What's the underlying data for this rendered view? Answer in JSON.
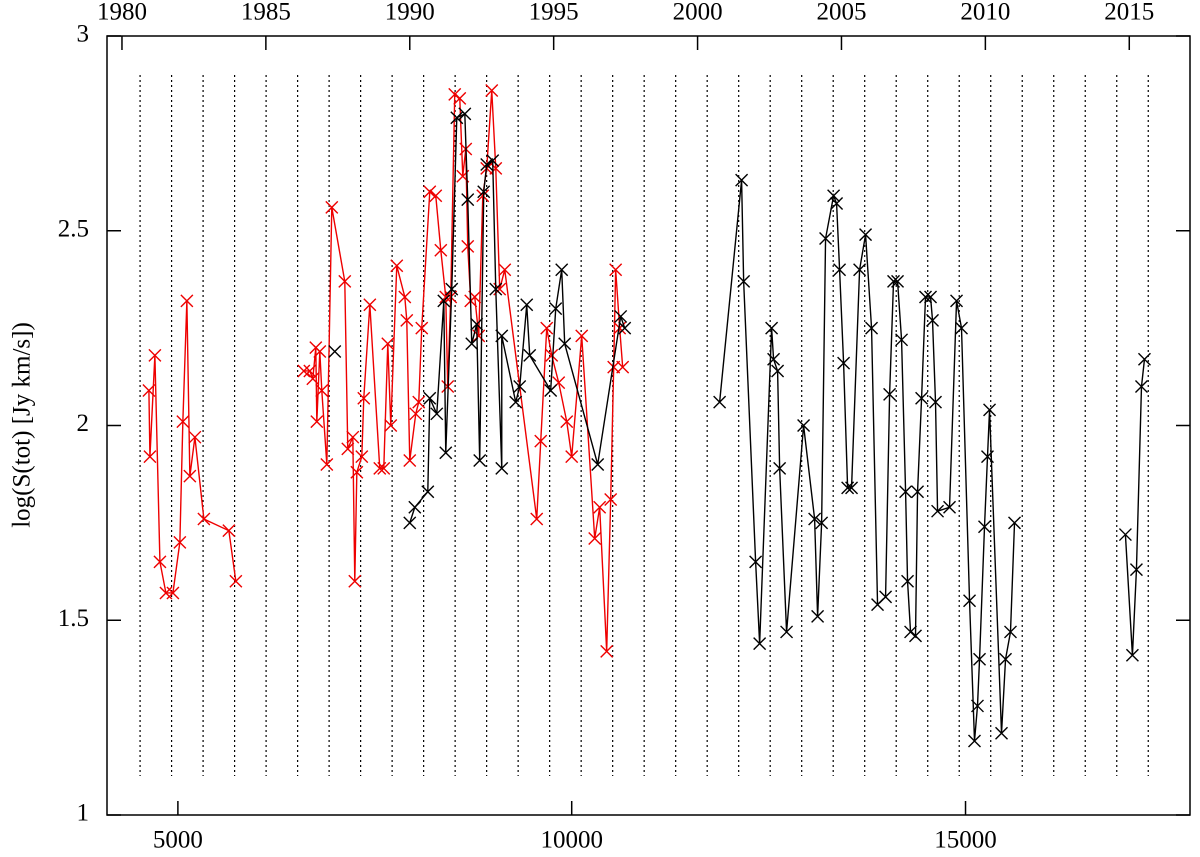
{
  "chart_data": {
    "type": "line",
    "ylabel": "log(S(tot) [Jy km/s])",
    "xlim": [
      4100,
      17850
    ],
    "xticks": [
      5000,
      10000,
      15000
    ],
    "x2lim": [
      1979.48,
      2017.11
    ],
    "x2ticks": [
      1980,
      1985,
      1990,
      1995,
      2000,
      2005,
      2010,
      2015
    ],
    "ylim": [
      1,
      3
    ],
    "yticks": [
      1,
      1.5,
      2,
      2.5,
      3
    ],
    "vlines": [
      4520,
      4920,
      5320,
      5720,
      6120,
      6520,
      6920,
      7320,
      7720,
      8120,
      8520,
      8920,
      9320,
      9720,
      10120,
      10520,
      10920,
      11320,
      11720,
      12120,
      12520,
      12920,
      13320,
      13720,
      14120,
      14520,
      14920,
      15320,
      15720,
      16120,
      16520,
      16920,
      17320
    ],
    "vline_range": [
      1.1,
      2.9
    ],
    "marker": "x",
    "series": [
      {
        "color": "#ee0000",
        "x": [
          4632,
          4645,
          4708,
          4772,
          4848,
          4937,
          5025,
          5063,
          5114,
          5152,
          5216,
          5330,
          5647,
          5736,
          null,
          6599,
          6675,
          6713,
          6751,
          6764,
          6802,
          6827,
          6891,
          6954,
          7119,
          7157,
          7221,
          7246,
          7272,
          7335,
          7360,
          7437,
          7563,
          7614,
          7665,
          7703,
          7779,
          7881,
          7906,
          7944,
          8020,
          8058,
          8096,
          8198,
          8274,
          8338,
          8401,
          8426,
          8464,
          8515,
          8579,
          8617,
          8655,
          8680,
          8718,
          8769,
          8820,
          8871,
          8921,
          8985,
          9036,
          9086,
          9150,
          9556,
          9607,
          9683,
          9746,
          9835,
          9937,
          10000,
          10127,
          10292,
          10355,
          10444,
          10495,
          10533,
          10558,
          10609,
          10647
        ],
        "values": [
          2.09,
          1.92,
          2.18,
          1.65,
          1.57,
          1.57,
          1.7,
          2.01,
          2.32,
          1.87,
          1.97,
          1.76,
          1.73,
          1.6,
          null,
          2.14,
          2.14,
          2.12,
          2.2,
          2.01,
          2.19,
          2.09,
          1.9,
          2.56,
          2.37,
          1.94,
          1.97,
          1.6,
          1.88,
          1.92,
          2.07,
          2.31,
          1.89,
          1.89,
          2.21,
          2.0,
          2.41,
          2.33,
          2.27,
          1.91,
          2.03,
          2.06,
          2.25,
          2.6,
          2.59,
          2.45,
          2.33,
          2.1,
          2.33,
          2.85,
          2.84,
          2.64,
          2.71,
          2.46,
          2.32,
          2.33,
          2.23,
          2.59,
          2.66,
          2.86,
          2.66,
          2.35,
          2.4,
          1.76,
          1.96,
          2.25,
          2.18,
          2.11,
          2.01,
          1.92,
          2.23,
          1.71,
          1.79,
          1.42,
          1.81,
          2.15,
          2.4,
          2.25,
          2.15
        ]
      },
      {
        "color": "#000000",
        "x": [
          6992,
          null,
          7944,
          8008,
          8173,
          8198,
          8287,
          8376,
          8401,
          8477,
          8541,
          8643,
          8680,
          8731,
          8794,
          8832,
          8883,
          8921,
          8997,
          9036,
          9112,
          9112,
          9289,
          9340,
          9429,
          9467,
          9733,
          9797,
          9873,
          9911,
          10330,
          10622,
          10673,
          null,
          11878,
          12157,
          12183,
          12335,
          12386,
          12538,
          12563,
          12614,
          12640,
          12728,
          12944,
          13084,
          13122,
          13173,
          13223,
          13325,
          13363,
          13401,
          13452,
          13503,
          13553,
          13655,
          13731,
          13807,
          13883,
          13985,
          14036,
          14086,
          14137,
          14188,
          14239,
          14264,
          14302,
          14365,
          14391,
          14442,
          14492,
          14556,
          14581,
          14619,
          14645,
          14797,
          14886,
          14949,
          15051,
          15114,
          15152,
          15178,
          15241,
          15279,
          15305,
          15457,
          15508,
          15571,
          15622,
          null,
          17030,
          17119,
          17170,
          17234,
          17272
        ],
        "values": [
          2.19,
          null,
          1.75,
          1.79,
          1.83,
          2.07,
          2.03,
          2.32,
          1.93,
          2.35,
          2.79,
          2.8,
          2.58,
          2.21,
          2.26,
          1.91,
          2.6,
          2.67,
          2.68,
          2.35,
          1.89,
          2.23,
          2.06,
          2.1,
          2.31,
          2.18,
          2.09,
          2.3,
          2.4,
          2.21,
          1.9,
          2.28,
          2.25,
          null,
          2.06,
          2.63,
          2.37,
          1.65,
          1.44,
          2.25,
          2.17,
          2.14,
          1.89,
          1.47,
          2.0,
          1.76,
          1.51,
          1.75,
          2.48,
          2.59,
          2.57,
          2.4,
          2.16,
          1.84,
          1.84,
          2.4,
          2.49,
          2.25,
          1.54,
          1.56,
          2.08,
          2.37,
          2.37,
          2.22,
          1.83,
          1.6,
          1.47,
          1.46,
          1.83,
          2.07,
          2.33,
          2.33,
          2.27,
          2.06,
          1.78,
          1.79,
          2.32,
          2.25,
          1.55,
          1.19,
          1.28,
          1.4,
          1.74,
          1.92,
          2.04,
          1.21,
          1.4,
          1.47,
          1.75,
          null,
          1.72,
          1.41,
          1.63,
          2.1,
          2.17
        ]
      }
    ]
  }
}
